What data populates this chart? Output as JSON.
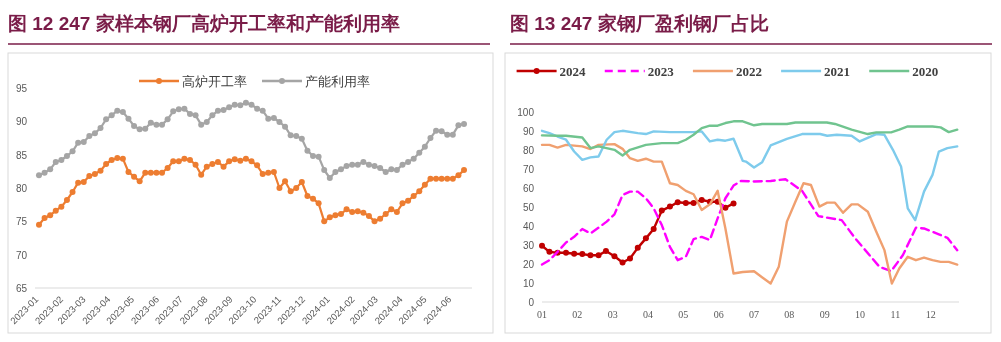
{
  "chart_data": [
    {
      "type": "line",
      "title": "图 12 247 家样本钢厂高炉开工率和产能利用率",
      "legend": "top",
      "marker": "circle",
      "x": [
        "2023-01-06",
        "2023-01-13",
        "2023-01-20",
        "2023-01-27",
        "2023-02-03",
        "2023-02-10",
        "2023-02-17",
        "2023-02-24",
        "2023-03-03",
        "2023-03-10",
        "2023-03-17",
        "2023-03-24",
        "2023-03-31",
        "2023-04-07",
        "2023-04-14",
        "2023-04-21",
        "2023-04-28",
        "2023-05-05",
        "2023-05-12",
        "2023-05-19",
        "2023-05-26",
        "2023-06-02",
        "2023-06-09",
        "2023-06-16",
        "2023-06-23",
        "2023-06-30",
        "2023-07-07",
        "2023-07-14",
        "2023-07-21",
        "2023-07-28",
        "2023-08-04",
        "2023-08-11",
        "2023-08-18",
        "2023-08-25",
        "2023-09-01",
        "2023-09-08",
        "2023-09-15",
        "2023-09-22",
        "2023-09-29",
        "2023-10-06",
        "2023-10-13",
        "2023-10-20",
        "2023-10-27",
        "2023-11-03",
        "2023-11-10",
        "2023-11-17",
        "2023-11-24",
        "2023-12-01",
        "2023-12-08",
        "2023-12-15",
        "2023-12-22",
        "2023-12-29",
        "2024-01-05",
        "2024-01-12",
        "2024-01-19",
        "2024-01-26",
        "2024-02-02",
        "2024-02-09",
        "2024-02-16",
        "2024-02-23",
        "2024-03-01",
        "2024-03-08",
        "2024-03-15",
        "2024-03-22",
        "2024-03-29",
        "2024-04-05",
        "2024-04-12",
        "2024-04-19",
        "2024-04-26",
        "2024-05-03",
        "2024-05-10",
        "2024-05-17",
        "2024-05-24",
        "2024-05-31",
        "2024-06-07",
        "2024-06-14",
        "2024-06-21"
      ],
      "series": [
        {
          "name": "高炉开工率",
          "color": "#ed7d31",
          "values": [
            74.5,
            75.5,
            75.9,
            76.6,
            77.2,
            78.2,
            79.4,
            80.8,
            80.9,
            81.8,
            82.1,
            82.6,
            83.6,
            84.2,
            84.5,
            84.4,
            82.4,
            81.7,
            81.0,
            82.3,
            82.3,
            82.3,
            82.3,
            83.0,
            84.0,
            84.0,
            84.4,
            84.2,
            83.5,
            82.0,
            83.2,
            83.6,
            83.9,
            83.2,
            84.0,
            84.3,
            84.1,
            84.4,
            84.0,
            83.4,
            82.1,
            82.3,
            82.4,
            80.0,
            81.0,
            79.5,
            80.0,
            80.9,
            78.8,
            78.4,
            77.7,
            75.0,
            75.6,
            75.9,
            76.1,
            76.8,
            76.4,
            76.5,
            76.3,
            75.8,
            75.0,
            75.4,
            76.1,
            76.8,
            76.4,
            77.7,
            78.1,
            78.8,
            79.5,
            80.5,
            81.4,
            81.4,
            81.4,
            81.4,
            81.4,
            81.9,
            82.7
          ]
        },
        {
          "name": "产能利用率",
          "color": "#a5a5a5",
          "values": [
            81.9,
            82.3,
            82.8,
            83.9,
            84.2,
            84.8,
            85.5,
            86.8,
            86.9,
            87.8,
            88.2,
            89.0,
            90.3,
            90.9,
            91.6,
            91.4,
            90.4,
            89.3,
            88.8,
            88.9,
            89.8,
            89.5,
            89.5,
            90.3,
            91.5,
            91.8,
            91.9,
            91.1,
            90.9,
            89.5,
            89.9,
            90.9,
            91.6,
            91.7,
            92.1,
            92.5,
            92.4,
            92.8,
            92.5,
            91.9,
            91.6,
            90.4,
            90.5,
            89.9,
            89.2,
            87.9,
            87.8,
            87.4,
            85.6,
            84.8,
            84.7,
            82.7,
            81.5,
            82.4,
            82.8,
            83.3,
            83.5,
            83.5,
            83.9,
            83.5,
            83.3,
            83.0,
            82.4,
            82.8,
            82.7,
            83.5,
            83.9,
            84.4,
            85.3,
            86.2,
            87.5,
            88.6,
            88.5,
            88.0,
            88.0,
            89.4,
            89.6
          ]
        }
      ],
      "xlim": [
        "2023-01-01",
        "2024-07-01"
      ],
      "ylim": [
        65,
        95
      ],
      "xticks": [
        "2023-01",
        "2023-02",
        "2023-03",
        "2023-04",
        "2023-05",
        "2023-06",
        "2023-07",
        "2023-08",
        "2023-09",
        "2023-10",
        "2023-11",
        "2023-12",
        "2024-01",
        "2024-02",
        "2024-03",
        "2024-04",
        "2024-05",
        "2024-06"
      ],
      "yticks": [
        65,
        70,
        75,
        80,
        85,
        90,
        95
      ]
    },
    {
      "type": "line",
      "title": "图 13 247 家钢厂盈利钢厂占比",
      "legend": "top",
      "series": [
        {
          "name": "2024",
          "color": "#c00000",
          "marker": "circle",
          "line_style": "solid",
          "x": [
            1.0,
            1.21,
            1.44,
            1.68,
            1.91,
            2.14,
            2.37,
            2.6,
            2.81,
            3.05,
            3.28,
            3.49,
            3.71,
            3.94,
            4.16,
            4.39,
            4.62,
            4.84,
            5.07,
            5.29,
            5.52,
            5.75,
            5.97,
            6.19,
            6.42
          ],
          "values": [
            29.6,
            26.4,
            25.9,
            25.9,
            25.4,
            25.2,
            24.6,
            24.6,
            26.8,
            24.1,
            20.8,
            22.9,
            28.5,
            33.5,
            38.4,
            48.1,
            50.2,
            52.5,
            52.1,
            52.1,
            53.7,
            52.8,
            52.8,
            49.6,
            51.9
          ]
        },
        {
          "name": "2023",
          "color": "#ff00ff",
          "marker": "none",
          "line_style": "dashed",
          "x": [
            1.0,
            1.21,
            1.44,
            1.68,
            1.91,
            2.14,
            2.37,
            2.6,
            2.83,
            3.05,
            3.28,
            3.49,
            3.71,
            3.94,
            4.16,
            4.39,
            4.62,
            4.84,
            5.07,
            5.29,
            5.52,
            5.75,
            5.97,
            6.19,
            6.42,
            6.63,
            7.0,
            7.47,
            7.89,
            8.36,
            8.82,
            9.06,
            9.48,
            9.85,
            10.27,
            10.55,
            10.88,
            11.21,
            11.58,
            11.81,
            12.23,
            12.47,
            12.75
          ],
          "values": [
            19.7,
            22.0,
            26.4,
            31.3,
            34.3,
            38.4,
            36.1,
            39.1,
            42.3,
            46.1,
            56.3,
            58.1,
            58.1,
            54.6,
            49.3,
            40.5,
            29.0,
            22.0,
            23.8,
            33.1,
            34.3,
            32.6,
            44.0,
            54.6,
            61.3,
            63.7,
            63.4,
            63.7,
            64.6,
            58.5,
            45.2,
            44.4,
            43.1,
            33.8,
            24.6,
            18.5,
            16.2,
            24.6,
            39.1,
            38.7,
            35.6,
            33.8,
            27.3
          ]
        },
        {
          "name": "2022",
          "color": "#f0a070",
          "marker": "none",
          "line_style": "solid",
          "x": [
            1.0,
            1.21,
            1.44,
            1.68,
            2.14,
            2.37,
            2.6,
            3.05,
            3.28,
            3.49,
            3.71,
            3.94,
            4.16,
            4.39,
            4.62,
            4.84,
            5.07,
            5.29,
            5.52,
            5.75,
            5.97,
            6.19,
            6.42,
            6.68,
            7.0,
            7.47,
            7.7,
            7.93,
            8.17,
            8.4,
            8.61,
            8.85,
            9.07,
            9.29,
            9.52,
            9.76,
            9.94,
            10.22,
            10.46,
            10.69,
            10.9,
            11.11,
            11.35,
            11.58,
            11.81,
            12.05,
            12.28,
            12.51,
            12.75
          ],
          "values": [
            82.7,
            82.7,
            81.3,
            82.7,
            81.9,
            80.5,
            82.7,
            83.1,
            80.6,
            75.7,
            74.3,
            75.4,
            73.9,
            73.9,
            62.5,
            61.6,
            58.5,
            56.7,
            48.4,
            51.4,
            58.5,
            38.7,
            15.0,
            15.8,
            16.2,
            9.7,
            18.5,
            42.3,
            52.8,
            62.5,
            61.6,
            50.2,
            52.3,
            52.3,
            47.0,
            51.4,
            51.4,
            47.5,
            37.0,
            27.3,
            9.7,
            17.6,
            23.8,
            22.0,
            23.4,
            22.0,
            21.1,
            21.1,
            19.7
          ]
        },
        {
          "name": "2021",
          "color": "#7ecbec",
          "marker": "none",
          "line_style": "solid",
          "x": [
            1.0,
            1.21,
            1.44,
            1.68,
            1.91,
            2.14,
            2.37,
            2.6,
            2.83,
            3.05,
            3.28,
            3.71,
            3.94,
            4.16,
            4.62,
            5.29,
            5.52,
            5.75,
            5.97,
            6.19,
            6.42,
            6.68,
            6.77,
            7.0,
            7.23,
            7.47,
            7.93,
            8.36,
            8.87,
            9.07,
            9.34,
            9.76,
            9.99,
            10.46,
            10.69,
            10.93,
            11.16,
            11.35,
            11.56,
            11.81,
            12.05,
            12.23,
            12.47,
            12.75
          ],
          "values": [
            90.1,
            88.9,
            87.1,
            85.4,
            79.2,
            74.8,
            76.1,
            76.6,
            85.4,
            89.4,
            90.1,
            88.9,
            88.4,
            89.8,
            89.4,
            89.4,
            89.8,
            84.5,
            85.4,
            84.9,
            85.9,
            74.3,
            73.9,
            70.8,
            73.6,
            82.4,
            85.9,
            88.4,
            88.4,
            87.5,
            88.0,
            87.5,
            84.5,
            88.4,
            88.0,
            80.1,
            71.3,
            49.3,
            43.1,
            58.1,
            66.9,
            79.2,
            81.0,
            81.9
          ]
        },
        {
          "name": "2020",
          "color": "#70c48f",
          "marker": "none",
          "line_style": "solid",
          "x": [
            1.0,
            1.44,
            1.68,
            2.14,
            2.37,
            2.6,
            3.05,
            3.28,
            3.49,
            3.94,
            4.39,
            4.84,
            5.07,
            5.29,
            5.52,
            5.75,
            5.97,
            6.19,
            6.42,
            6.68,
            7.0,
            7.23,
            7.93,
            8.17,
            9.06,
            9.29,
            9.76,
            10.22,
            10.46,
            10.88,
            11.11,
            11.35,
            12.05,
            12.28,
            12.51,
            12.75
          ],
          "values": [
            87.7,
            87.5,
            87.5,
            86.6,
            81.0,
            81.9,
            80.1,
            77.1,
            80.1,
            82.7,
            83.6,
            83.6,
            85.4,
            88.0,
            91.5,
            92.8,
            92.8,
            94.2,
            95.1,
            95.1,
            93.0,
            93.7,
            93.7,
            94.5,
            94.5,
            93.7,
            90.7,
            88.4,
            89.3,
            89.3,
            90.7,
            92.4,
            92.4,
            91.9,
            89.4,
            90.7
          ]
        }
      ],
      "xlim": [
        1,
        12.8
      ],
      "ylim": [
        0,
        100
      ],
      "xticks": [
        {
          "value": 1,
          "label": "01"
        },
        {
          "value": 2,
          "label": "02"
        },
        {
          "value": 3,
          "label": "03"
        },
        {
          "value": 4,
          "label": "04"
        },
        {
          "value": 5,
          "label": "05"
        },
        {
          "value": 6,
          "label": "06"
        },
        {
          "value": 7,
          "label": "07"
        },
        {
          "value": 8,
          "label": "08"
        },
        {
          "value": 9,
          "label": "09"
        },
        {
          "value": 10,
          "label": "10"
        },
        {
          "value": 11,
          "label": "11"
        },
        {
          "value": 12,
          "label": "12"
        }
      ],
      "yticks": [
        0,
        10,
        20,
        30,
        40,
        50,
        60,
        70,
        80,
        90,
        100
      ]
    }
  ]
}
